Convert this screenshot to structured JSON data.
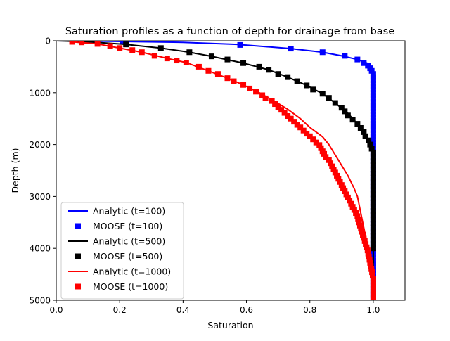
{
  "chart_data": {
    "type": "line",
    "title": "Saturation profiles as a function of depth for drainage from base",
    "xlabel": "Saturation",
    "ylabel": "Depth (m)",
    "xlim": [
      0.0,
      1.1
    ],
    "ylim": [
      5000,
      0
    ],
    "y_inverted": true,
    "grid": false,
    "legend_position": "lower-left",
    "x_ticks": [
      "0.0",
      "0.2",
      "0.4",
      "0.6",
      "0.8",
      "1.0"
    ],
    "y_ticks": [
      "0",
      "1000",
      "2000",
      "3000",
      "4000",
      "5000"
    ],
    "series": [
      {
        "name": "Analytic (t=100)",
        "kind": "line",
        "color": "#0000ff",
        "points": [
          [
            0.0,
            0
          ],
          [
            0.15,
            8
          ],
          [
            0.4,
            30
          ],
          [
            0.57,
            70
          ],
          [
            0.74,
            150
          ],
          [
            0.84,
            220
          ],
          [
            0.9,
            290
          ],
          [
            0.95,
            360
          ],
          [
            0.98,
            430
          ],
          [
            0.99,
            500
          ],
          [
            1.0,
            600
          ],
          [
            1.0,
            5000
          ]
        ]
      },
      {
        "name": "MOOSE (t=100)",
        "kind": "marker",
        "color": "#0000ff",
        "points": [
          [
            0.21,
            20
          ],
          [
            0.58,
            80
          ],
          [
            0.74,
            150
          ],
          [
            0.84,
            220
          ],
          [
            0.91,
            290
          ],
          [
            0.95,
            360
          ],
          [
            0.97,
            430
          ],
          [
            0.983,
            480
          ],
          [
            0.99,
            530
          ],
          [
            0.995,
            580
          ],
          [
            1.0,
            640
          ],
          [
            1.0,
            700
          ],
          [
            1.0,
            760
          ],
          [
            1.0,
            820
          ],
          [
            1.0,
            880
          ],
          [
            1.0,
            940
          ],
          [
            1.0,
            1000
          ],
          [
            1.0,
            1060
          ],
          [
            1.0,
            1120
          ],
          [
            1.0,
            1180
          ],
          [
            1.0,
            1240
          ],
          [
            1.0,
            1300
          ],
          [
            1.0,
            1360
          ],
          [
            1.0,
            1420
          ],
          [
            1.0,
            1480
          ],
          [
            1.0,
            1540
          ],
          [
            1.0,
            1600
          ],
          [
            1.0,
            1660
          ],
          [
            1.0,
            1720
          ],
          [
            1.0,
            1780
          ],
          [
            1.0,
            1840
          ],
          [
            1.0,
            1900
          ],
          [
            1.0,
            1960
          ],
          [
            1.0,
            2020
          ],
          [
            1.0,
            2080
          ],
          [
            1.0,
            2140
          ],
          [
            1.0,
            2200
          ],
          [
            1.0,
            2260
          ],
          [
            1.0,
            2320
          ],
          [
            1.0,
            2380
          ],
          [
            1.0,
            2440
          ],
          [
            1.0,
            2500
          ],
          [
            1.0,
            2560
          ],
          [
            1.0,
            2620
          ],
          [
            1.0,
            2680
          ],
          [
            1.0,
            2740
          ],
          [
            1.0,
            2800
          ],
          [
            1.0,
            2860
          ],
          [
            1.0,
            2920
          ],
          [
            1.0,
            2980
          ],
          [
            1.0,
            3040
          ],
          [
            1.0,
            3100
          ],
          [
            1.0,
            3160
          ],
          [
            1.0,
            3220
          ],
          [
            1.0,
            3280
          ],
          [
            1.0,
            3340
          ],
          [
            1.0,
            3400
          ],
          [
            1.0,
            3460
          ],
          [
            1.0,
            3520
          ],
          [
            1.0,
            3580
          ],
          [
            1.0,
            3640
          ],
          [
            1.0,
            3700
          ],
          [
            1.0,
            3760
          ],
          [
            1.0,
            3820
          ],
          [
            1.0,
            3880
          ],
          [
            1.0,
            3940
          ],
          [
            1.0,
            4000
          ],
          [
            1.0,
            4060
          ],
          [
            1.0,
            4120
          ],
          [
            1.0,
            4180
          ],
          [
            1.0,
            4240
          ],
          [
            1.0,
            4300
          ],
          [
            1.0,
            4360
          ],
          [
            1.0,
            4420
          ],
          [
            1.0,
            4480
          ],
          [
            1.0,
            4540
          ],
          [
            1.0,
            4600
          ],
          [
            1.0,
            4660
          ],
          [
            1.0,
            4720
          ],
          [
            1.0,
            4780
          ],
          [
            1.0,
            4840
          ],
          [
            1.0,
            4900
          ],
          [
            1.0,
            4960
          ]
        ]
      },
      {
        "name": "Analytic (t=500)",
        "kind": "line",
        "color": "#000000",
        "points": [
          [
            0.0,
            0
          ],
          [
            0.1,
            20
          ],
          [
            0.22,
            70
          ],
          [
            0.33,
            140
          ],
          [
            0.42,
            220
          ],
          [
            0.49,
            300
          ],
          [
            0.59,
            430
          ],
          [
            0.67,
            560
          ],
          [
            0.73,
            700
          ],
          [
            0.79,
            860
          ],
          [
            0.84,
            1020
          ],
          [
            0.88,
            1200
          ],
          [
            0.92,
            1400
          ],
          [
            0.95,
            1600
          ],
          [
            0.97,
            1800
          ],
          [
            0.99,
            2000
          ],
          [
            1.0,
            2200
          ],
          [
            1.0,
            5000
          ]
        ]
      },
      {
        "name": "MOOSE (t=500)",
        "kind": "marker",
        "color": "#000000",
        "points": [
          [
            0.22,
            70
          ],
          [
            0.33,
            140
          ],
          [
            0.42,
            220
          ],
          [
            0.49,
            300
          ],
          [
            0.54,
            360
          ],
          [
            0.59,
            430
          ],
          [
            0.64,
            500
          ],
          [
            0.67,
            560
          ],
          [
            0.7,
            640
          ],
          [
            0.73,
            700
          ],
          [
            0.76,
            780
          ],
          [
            0.79,
            860
          ],
          [
            0.81,
            940
          ],
          [
            0.84,
            1020
          ],
          [
            0.86,
            1100
          ],
          [
            0.88,
            1200
          ],
          [
            0.9,
            1290
          ],
          [
            0.91,
            1360
          ],
          [
            0.92,
            1440
          ],
          [
            0.935,
            1520
          ],
          [
            0.95,
            1600
          ],
          [
            0.96,
            1680
          ],
          [
            0.97,
            1760
          ],
          [
            0.975,
            1840
          ],
          [
            0.985,
            1920
          ],
          [
            0.99,
            2000
          ],
          [
            0.995,
            2080
          ],
          [
            1.0,
            2160
          ],
          [
            1.0,
            2240
          ],
          [
            1.0,
            2320
          ],
          [
            1.0,
            2400
          ],
          [
            1.0,
            2480
          ],
          [
            1.0,
            2560
          ],
          [
            1.0,
            2640
          ],
          [
            1.0,
            2720
          ],
          [
            1.0,
            2800
          ],
          [
            1.0,
            2880
          ],
          [
            1.0,
            2960
          ],
          [
            1.0,
            3040
          ],
          [
            1.0,
            3120
          ],
          [
            1.0,
            3200
          ],
          [
            1.0,
            3280
          ],
          [
            1.0,
            3360
          ],
          [
            1.0,
            3440
          ],
          [
            1.0,
            3520
          ],
          [
            1.0,
            3600
          ],
          [
            1.0,
            3680
          ],
          [
            1.0,
            3760
          ],
          [
            1.0,
            3840
          ],
          [
            1.0,
            3920
          ],
          [
            1.0,
            4000
          ]
        ]
      },
      {
        "name": "Analytic (t=1000)",
        "kind": "line",
        "color": "#ff0000",
        "points": [
          [
            0.05,
            20
          ],
          [
            0.13,
            60
          ],
          [
            0.2,
            140
          ],
          [
            0.27,
            220
          ],
          [
            0.35,
            340
          ],
          [
            0.41,
            420
          ],
          [
            0.48,
            580
          ],
          [
            0.54,
            720
          ],
          [
            0.59,
            850
          ],
          [
            0.64,
            1000
          ],
          [
            0.69,
            1170
          ],
          [
            0.73,
            1320
          ],
          [
            0.77,
            1500
          ],
          [
            0.8,
            1670
          ],
          [
            0.84,
            1850
          ],
          [
            0.86,
            2000
          ],
          [
            0.88,
            2200
          ],
          [
            0.9,
            2400
          ],
          [
            0.92,
            2600
          ],
          [
            0.94,
            2850
          ],
          [
            0.95,
            3000
          ],
          [
            0.96,
            3300
          ],
          [
            0.97,
            3600
          ],
          [
            0.98,
            3900
          ],
          [
            0.99,
            4250
          ],
          [
            1.0,
            4600
          ],
          [
            1.0,
            5000
          ]
        ]
      },
      {
        "name": "MOOSE (t=1000)",
        "kind": "marker",
        "color": "#ff0000",
        "points": [
          [
            0.05,
            20
          ],
          [
            0.08,
            30
          ],
          [
            0.13,
            60
          ],
          [
            0.17,
            100
          ],
          [
            0.2,
            140
          ],
          [
            0.24,
            180
          ],
          [
            0.27,
            220
          ],
          [
            0.31,
            290
          ],
          [
            0.35,
            340
          ],
          [
            0.38,
            380
          ],
          [
            0.41,
            420
          ],
          [
            0.45,
            500
          ],
          [
            0.48,
            580
          ],
          [
            0.51,
            640
          ],
          [
            0.54,
            720
          ],
          [
            0.56,
            780
          ],
          [
            0.59,
            850
          ],
          [
            0.61,
            920
          ],
          [
            0.63,
            980
          ],
          [
            0.65,
            1050
          ],
          [
            0.66,
            1110
          ],
          [
            0.68,
            1160
          ],
          [
            0.69,
            1220
          ],
          [
            0.7,
            1280
          ],
          [
            0.71,
            1330
          ],
          [
            0.72,
            1390
          ],
          [
            0.73,
            1450
          ],
          [
            0.74,
            1500
          ],
          [
            0.75,
            1560
          ],
          [
            0.76,
            1620
          ],
          [
            0.77,
            1670
          ],
          [
            0.78,
            1730
          ],
          [
            0.79,
            1790
          ],
          [
            0.8,
            1840
          ],
          [
            0.81,
            1900
          ],
          [
            0.82,
            1960
          ],
          [
            0.83,
            2010
          ],
          [
            0.835,
            2070
          ],
          [
            0.84,
            2130
          ],
          [
            0.845,
            2180
          ],
          [
            0.85,
            2240
          ],
          [
            0.86,
            2300
          ],
          [
            0.865,
            2360
          ],
          [
            0.87,
            2420
          ],
          [
            0.875,
            2480
          ],
          [
            0.88,
            2540
          ],
          [
            0.885,
            2600
          ],
          [
            0.89,
            2660
          ],
          [
            0.895,
            2720
          ],
          [
            0.9,
            2780
          ],
          [
            0.905,
            2840
          ],
          [
            0.91,
            2900
          ],
          [
            0.915,
            2960
          ],
          [
            0.92,
            3020
          ],
          [
            0.925,
            3080
          ],
          [
            0.93,
            3140
          ],
          [
            0.935,
            3200
          ],
          [
            0.94,
            3260
          ],
          [
            0.945,
            3320
          ],
          [
            0.95,
            3380
          ],
          [
            0.952,
            3440
          ],
          [
            0.955,
            3500
          ],
          [
            0.958,
            3560
          ],
          [
            0.961,
            3620
          ],
          [
            0.964,
            3680
          ],
          [
            0.967,
            3740
          ],
          [
            0.97,
            3800
          ],
          [
            0.973,
            3860
          ],
          [
            0.976,
            3920
          ],
          [
            0.979,
            3980
          ],
          [
            0.982,
            4040
          ],
          [
            0.984,
            4100
          ],
          [
            0.986,
            4160
          ],
          [
            0.988,
            4220
          ],
          [
            0.99,
            4280
          ],
          [
            0.992,
            4340
          ],
          [
            0.994,
            4400
          ],
          [
            0.996,
            4460
          ],
          [
            0.998,
            4520
          ],
          [
            1.0,
            4580
          ],
          [
            1.0,
            4640
          ],
          [
            1.0,
            4700
          ],
          [
            1.0,
            4760
          ],
          [
            1.0,
            4820
          ],
          [
            1.0,
            4880
          ],
          [
            1.0,
            4940
          ],
          [
            1.0,
            4990
          ]
        ]
      }
    ]
  }
}
